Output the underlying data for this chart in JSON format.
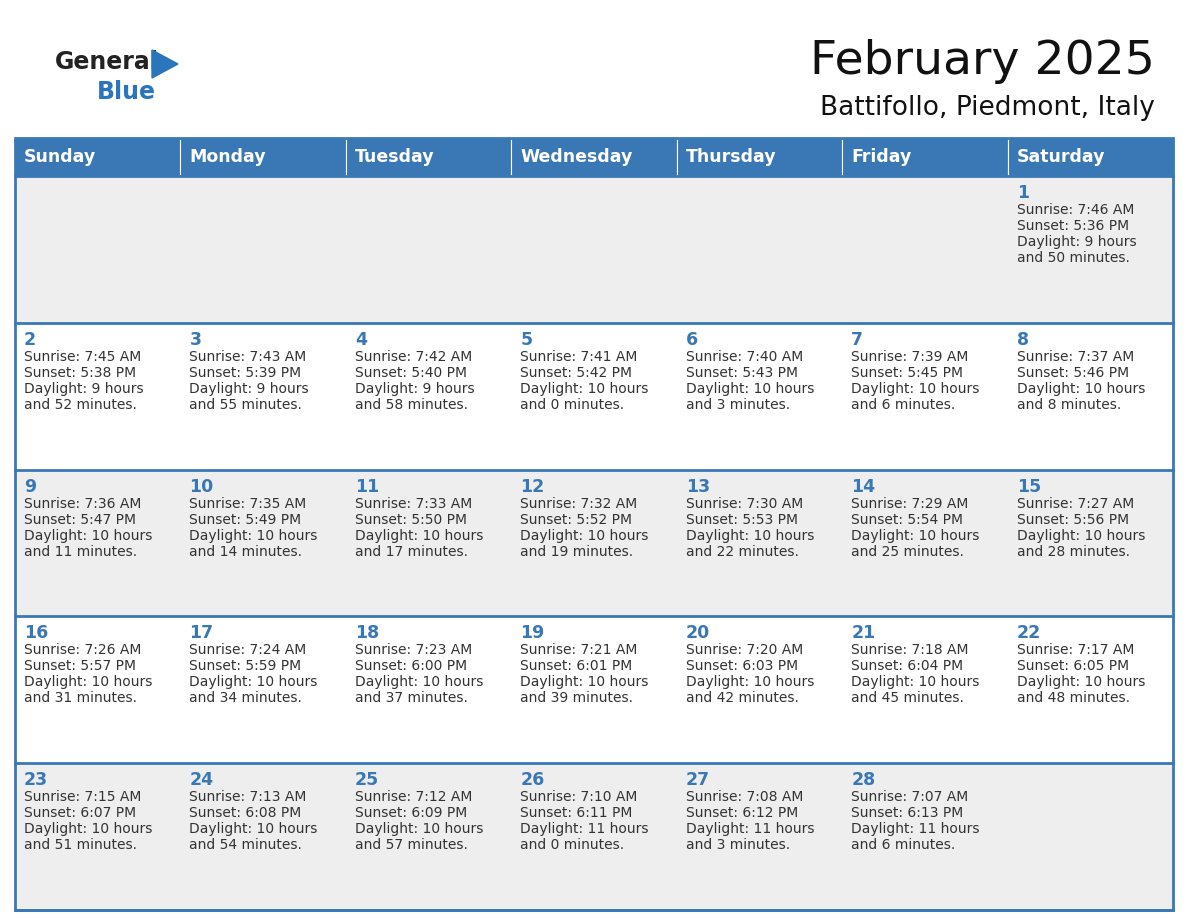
{
  "title": "February 2025",
  "subtitle": "Battifollo, Piedmont, Italy",
  "header_color": "#3a78b5",
  "header_text_color": "#ffffff",
  "days_of_week": [
    "Sunday",
    "Monday",
    "Tuesday",
    "Wednesday",
    "Thursday",
    "Friday",
    "Saturday"
  ],
  "bg_color_light": "#eeeeee",
  "bg_color_white": "#ffffff",
  "line_color": "#3a78b5",
  "day_num_color": "#3a78b5",
  "text_color": "#333333",
  "calendar_data": [
    [
      null,
      null,
      null,
      null,
      null,
      null,
      {
        "day": 1,
        "sunrise": "7:46 AM",
        "sunset": "5:36 PM",
        "daylight": "9 hours and 50 minutes."
      }
    ],
    [
      {
        "day": 2,
        "sunrise": "7:45 AM",
        "sunset": "5:38 PM",
        "daylight": "9 hours and 52 minutes."
      },
      {
        "day": 3,
        "sunrise": "7:43 AM",
        "sunset": "5:39 PM",
        "daylight": "9 hours and 55 minutes."
      },
      {
        "day": 4,
        "sunrise": "7:42 AM",
        "sunset": "5:40 PM",
        "daylight": "9 hours and 58 minutes."
      },
      {
        "day": 5,
        "sunrise": "7:41 AM",
        "sunset": "5:42 PM",
        "daylight": "10 hours and 0 minutes."
      },
      {
        "day": 6,
        "sunrise": "7:40 AM",
        "sunset": "5:43 PM",
        "daylight": "10 hours and 3 minutes."
      },
      {
        "day": 7,
        "sunrise": "7:39 AM",
        "sunset": "5:45 PM",
        "daylight": "10 hours and 6 minutes."
      },
      {
        "day": 8,
        "sunrise": "7:37 AM",
        "sunset": "5:46 PM",
        "daylight": "10 hours and 8 minutes."
      }
    ],
    [
      {
        "day": 9,
        "sunrise": "7:36 AM",
        "sunset": "5:47 PM",
        "daylight": "10 hours and 11 minutes."
      },
      {
        "day": 10,
        "sunrise": "7:35 AM",
        "sunset": "5:49 PM",
        "daylight": "10 hours and 14 minutes."
      },
      {
        "day": 11,
        "sunrise": "7:33 AM",
        "sunset": "5:50 PM",
        "daylight": "10 hours and 17 minutes."
      },
      {
        "day": 12,
        "sunrise": "7:32 AM",
        "sunset": "5:52 PM",
        "daylight": "10 hours and 19 minutes."
      },
      {
        "day": 13,
        "sunrise": "7:30 AM",
        "sunset": "5:53 PM",
        "daylight": "10 hours and 22 minutes."
      },
      {
        "day": 14,
        "sunrise": "7:29 AM",
        "sunset": "5:54 PM",
        "daylight": "10 hours and 25 minutes."
      },
      {
        "day": 15,
        "sunrise": "7:27 AM",
        "sunset": "5:56 PM",
        "daylight": "10 hours and 28 minutes."
      }
    ],
    [
      {
        "day": 16,
        "sunrise": "7:26 AM",
        "sunset": "5:57 PM",
        "daylight": "10 hours and 31 minutes."
      },
      {
        "day": 17,
        "sunrise": "7:24 AM",
        "sunset": "5:59 PM",
        "daylight": "10 hours and 34 minutes."
      },
      {
        "day": 18,
        "sunrise": "7:23 AM",
        "sunset": "6:00 PM",
        "daylight": "10 hours and 37 minutes."
      },
      {
        "day": 19,
        "sunrise": "7:21 AM",
        "sunset": "6:01 PM",
        "daylight": "10 hours and 39 minutes."
      },
      {
        "day": 20,
        "sunrise": "7:20 AM",
        "sunset": "6:03 PM",
        "daylight": "10 hours and 42 minutes."
      },
      {
        "day": 21,
        "sunrise": "7:18 AM",
        "sunset": "6:04 PM",
        "daylight": "10 hours and 45 minutes."
      },
      {
        "day": 22,
        "sunrise": "7:17 AM",
        "sunset": "6:05 PM",
        "daylight": "10 hours and 48 minutes."
      }
    ],
    [
      {
        "day": 23,
        "sunrise": "7:15 AM",
        "sunset": "6:07 PM",
        "daylight": "10 hours and 51 minutes."
      },
      {
        "day": 24,
        "sunrise": "7:13 AM",
        "sunset": "6:08 PM",
        "daylight": "10 hours and 54 minutes."
      },
      {
        "day": 25,
        "sunrise": "7:12 AM",
        "sunset": "6:09 PM",
        "daylight": "10 hours and 57 minutes."
      },
      {
        "day": 26,
        "sunrise": "7:10 AM",
        "sunset": "6:11 PM",
        "daylight": "11 hours and 0 minutes."
      },
      {
        "day": 27,
        "sunrise": "7:08 AM",
        "sunset": "6:12 PM",
        "daylight": "11 hours and 3 minutes."
      },
      {
        "day": 28,
        "sunrise": "7:07 AM",
        "sunset": "6:13 PM",
        "daylight": "11 hours and 6 minutes."
      },
      null
    ]
  ],
  "logo_general_color": "#222222",
  "logo_blue_color": "#2a75bb",
  "logo_triangle_color": "#2a75bb"
}
